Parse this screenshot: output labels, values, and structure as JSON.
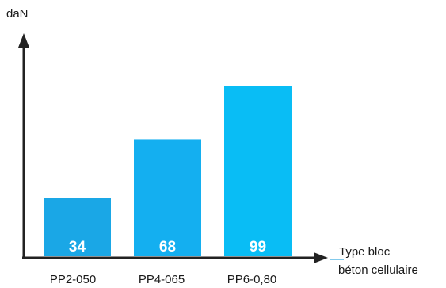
{
  "chart_data": {
    "type": "bar",
    "categories": [
      "PP2-050",
      "PP4-065",
      "PP6-0,80"
    ],
    "values": [
      34,
      68,
      99
    ],
    "ylabel": "daN",
    "xlabel_lines": [
      "Type bloc",
      "béton cellulaire"
    ],
    "ylim": [
      0,
      115
    ],
    "grid": false,
    "legend": "none",
    "data_labels": [
      "34",
      "68",
      "99"
    ],
    "colors": {
      "bars": [
        "#1aa7e6",
        "#14aff0",
        "#09bdf5"
      ],
      "value_text": "#ffffff",
      "axis": "#222222",
      "xlabel_underline": "#5ab8e6"
    }
  }
}
